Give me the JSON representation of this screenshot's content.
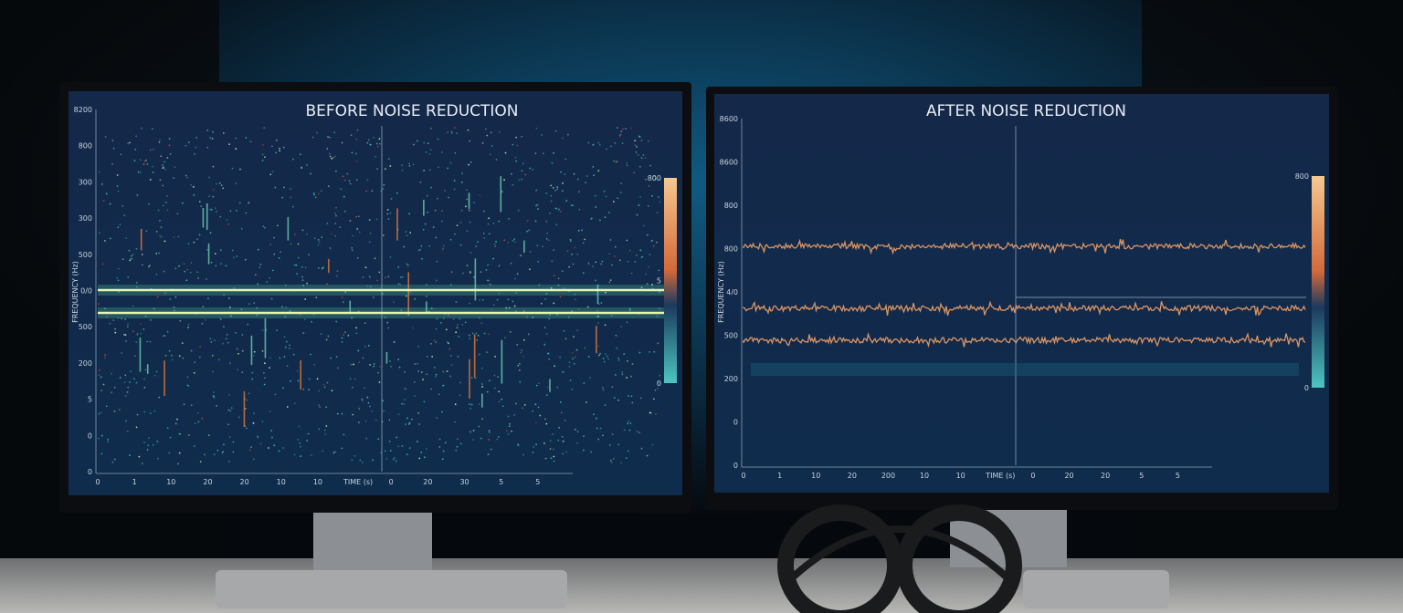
{
  "screens": [
    {
      "title": "BEFORE NOISE REDUCTION",
      "y_label": "FREQUENCY (Hz)",
      "x_label": "TIME (s)",
      "y_ticks": [
        "8200",
        "800",
        "300",
        "300",
        "500",
        "0/0",
        "500",
        "200",
        "5",
        "0",
        "0"
      ],
      "x_ticks": [
        "0",
        "1",
        "10",
        "20",
        "20",
        "10",
        "10",
        "0",
        "20",
        "30",
        "5",
        "5"
      ],
      "colorbar_labels": [
        "800",
        "5",
        "0"
      ]
    },
    {
      "title": "AFTER NOISE REDUCTION",
      "y_label": "FREQUENCY (Hz)",
      "x_label": "TIME (s)",
      "y_ticks": [
        "8600",
        "8600",
        "800",
        "800",
        "4/0",
        "500",
        "200",
        "0",
        "0"
      ],
      "x_ticks": [
        "0",
        "1",
        "10",
        "20",
        "200",
        "10",
        "10",
        "0",
        "20",
        "20",
        "5",
        "5"
      ],
      "colorbar_labels": [
        "800",
        "0"
      ]
    }
  ]
}
